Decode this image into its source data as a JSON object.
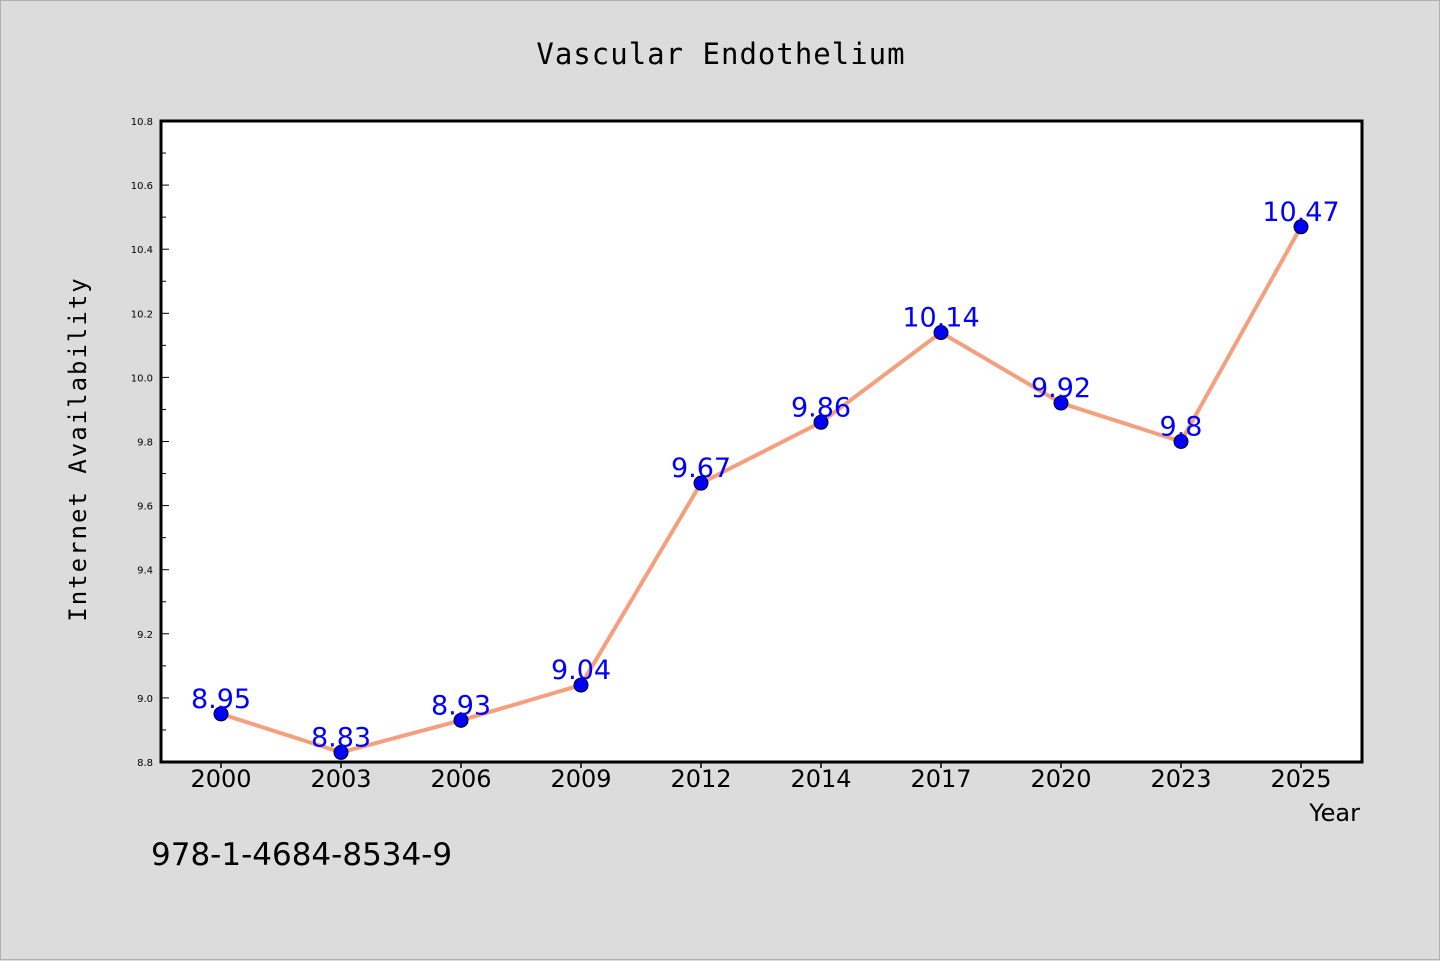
{
  "chart_data": {
    "type": "line",
    "title": "Vascular Endothelium",
    "xlabel": "Year",
    "ylabel": "Internet Availability",
    "categories": [
      "2000",
      "2003",
      "2006",
      "2009",
      "2012",
      "2014",
      "2017",
      "2020",
      "2023",
      "2025"
    ],
    "values": [
      8.95,
      8.83,
      8.93,
      9.04,
      9.67,
      9.86,
      10.14,
      9.92,
      9.8,
      10.47
    ],
    "data_labels": [
      "8.95",
      "8.83",
      "8.93",
      "9.04",
      "9.67",
      "9.86",
      "10.14",
      "9.92",
      "9.8",
      "10.47"
    ],
    "ylim": [
      8.8,
      10.8
    ],
    "yticks": [
      "8.8",
      "9.0",
      "9.2",
      "9.4",
      "9.6",
      "9.8",
      "10.0",
      "10.2",
      "10.4",
      "10.6",
      "10.8"
    ],
    "grid": false,
    "legend": "none",
    "line_color": "#f4a07e",
    "marker_color": "#0000ff",
    "label_color": "#0000ff",
    "background_color": "#dcdcdc",
    "plot_background": "#ffffff"
  },
  "footnote": "978-1-4684-8534-9"
}
